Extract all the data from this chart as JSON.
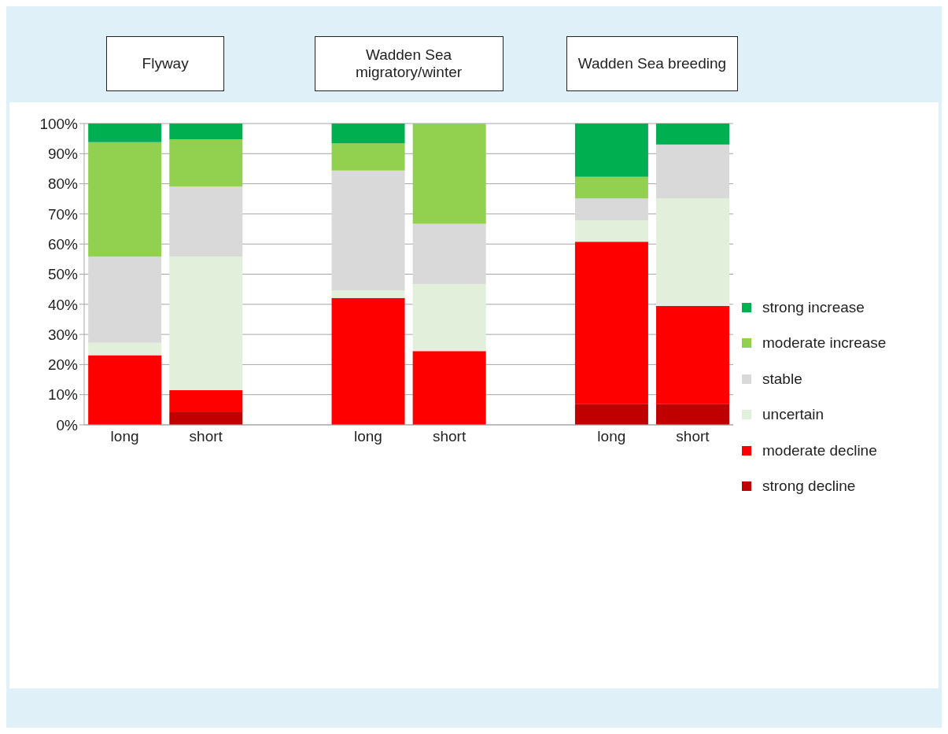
{
  "chart_data": {
    "type": "bar",
    "stacked": true,
    "categories": [
      "long",
      "short",
      null,
      "long",
      "short",
      null,
      "long",
      "short"
    ],
    "series": [
      {
        "name": "strong decline",
        "color": "#c00000",
        "values": [
          0,
          4.2,
          null,
          0,
          0,
          null,
          7.0,
          7.0
        ]
      },
      {
        "name": "moderate decline",
        "color": "#ff0000",
        "values": [
          23.1,
          7.3,
          null,
          42.1,
          24.5,
          null,
          53.8,
          32.4
        ]
      },
      {
        "name": "uncertain",
        "color": "#e2efda",
        "values": [
          4.1,
          44.3,
          null,
          2.5,
          22.2,
          null,
          7.1,
          35.7
        ]
      },
      {
        "name": "stable",
        "color": "#d9d9d9",
        "values": [
          28.6,
          23.3,
          null,
          39.8,
          20.0,
          null,
          7.2,
          17.9
        ]
      },
      {
        "name": "moderate increase",
        "color": "#92d050",
        "values": [
          38.0,
          15.7,
          null,
          9.0,
          33.3,
          null,
          7.2,
          0
        ]
      },
      {
        "name": "strong increase",
        "color": "#00b050",
        "values": [
          6.2,
          5.2,
          null,
          6.6,
          0,
          null,
          17.7,
          7.0
        ]
      }
    ],
    "annotations": [
      "Flyway",
      "Wadden Sea migratory/winter",
      "Wadden Sea breeding"
    ],
    "ylim": [
      0,
      100
    ],
    "yticks": [
      {
        "value": 0,
        "label": "0%"
      },
      {
        "value": 10,
        "label": "10%"
      },
      {
        "value": 20,
        "label": "20%"
      },
      {
        "value": 30,
        "label": "30%"
      },
      {
        "value": 40,
        "label": "40%"
      },
      {
        "value": 50,
        "label": "50%"
      },
      {
        "value": 60,
        "label": "60%"
      },
      {
        "value": 70,
        "label": "70%"
      },
      {
        "value": 80,
        "label": "80%"
      },
      {
        "value": 90,
        "label": "90%"
      },
      {
        "value": 100,
        "label": "100%"
      }
    ],
    "grid": "y",
    "legend": "right"
  }
}
